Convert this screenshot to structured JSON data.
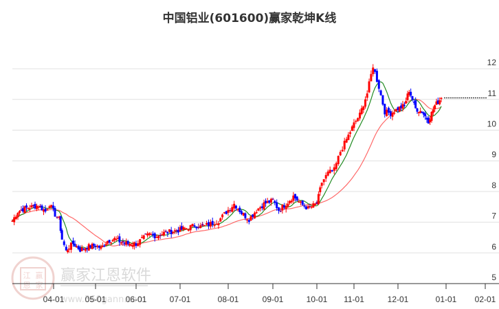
{
  "title": "中国铝业(601600)赢家乾坤K线",
  "watermark": {
    "brand": "赢家江恩软件",
    "url": "www.360gann.com",
    "seal": [
      "江",
      "赢",
      "恩",
      "家"
    ]
  },
  "colors": {
    "up": "#ff0000",
    "down": "#0000ff",
    "neutral": "#800080",
    "ma_short": "#228b22",
    "ma_long": "#ff4d4d",
    "grid": "#e0e0e0",
    "axis": "#333333",
    "last_price_line": "#000000"
  },
  "chart_data": {
    "type": "candlestick",
    "title": "中国铝业(601600)赢家乾坤K线",
    "xlabel": "",
    "ylabel": "",
    "ylim": [
      5,
      12.5
    ],
    "y_ticks": [
      5,
      6,
      7,
      8,
      9,
      10,
      11,
      12
    ],
    "x_ticks": [
      "04-01",
      "05-01",
      "06-01",
      "07-01",
      "08-01",
      "09-01",
      "10-01",
      "11-01",
      "12-01",
      "01-01",
      "02-01"
    ],
    "grid": true,
    "last_price": 11.05,
    "series": [
      {
        "name": "close",
        "points": [
          [
            "03-01",
            7.05
          ],
          [
            "03-05",
            7.35
          ],
          [
            "03-10",
            7.45
          ],
          [
            "03-15",
            7.5
          ],
          [
            "03-20",
            7.55
          ],
          [
            "03-25",
            7.35
          ],
          [
            "03-28",
            7.6
          ],
          [
            "04-02",
            7.25
          ],
          [
            "04-05",
            7.1
          ],
          [
            "04-07",
            6.45
          ],
          [
            "04-10",
            6.05
          ],
          [
            "04-12",
            6.2
          ],
          [
            "04-15",
            6.3
          ],
          [
            "04-20",
            6.1
          ],
          [
            "04-25",
            6.2
          ],
          [
            "05-01",
            6.25
          ],
          [
            "05-05",
            6.15
          ],
          [
            "05-10",
            6.4
          ],
          [
            "05-15",
            6.45
          ],
          [
            "05-20",
            6.35
          ],
          [
            "05-25",
            6.3
          ],
          [
            "06-01",
            6.3
          ],
          [
            "06-05",
            6.45
          ],
          [
            "06-10",
            6.6
          ],
          [
            "06-15",
            6.55
          ],
          [
            "06-20",
            6.65
          ],
          [
            "06-25",
            6.7
          ],
          [
            "07-01",
            6.75
          ],
          [
            "07-05",
            6.8
          ],
          [
            "07-10",
            6.9
          ],
          [
            "07-15",
            6.85
          ],
          [
            "07-20",
            6.95
          ],
          [
            "07-25",
            7.05
          ],
          [
            "08-01",
            7.4
          ],
          [
            "08-05",
            7.6
          ],
          [
            "08-10",
            7.3
          ],
          [
            "08-15",
            7.1
          ],
          [
            "08-20",
            7.4
          ],
          [
            "08-25",
            7.6
          ],
          [
            "09-01",
            7.7
          ],
          [
            "09-05",
            7.4
          ],
          [
            "09-10",
            7.6
          ],
          [
            "09-15",
            7.85
          ],
          [
            "09-20",
            7.6
          ],
          [
            "09-25",
            7.45
          ],
          [
            "10-01",
            7.6
          ],
          [
            "10-05",
            8.3
          ],
          [
            "10-10",
            8.6
          ],
          [
            "10-15",
            8.7
          ],
          [
            "10-20",
            9.3
          ],
          [
            "10-25",
            9.7
          ],
          [
            "11-01",
            10.2
          ],
          [
            "11-05",
            10.5
          ],
          [
            "11-10",
            11.2
          ],
          [
            "11-14",
            12.1
          ],
          [
            "11-18",
            11.4
          ],
          [
            "11-22",
            10.6
          ],
          [
            "11-26",
            10.55
          ],
          [
            "12-01",
            10.7
          ],
          [
            "12-05",
            10.8
          ],
          [
            "12-08",
            11.3
          ],
          [
            "12-12",
            10.7
          ],
          [
            "12-16",
            10.6
          ],
          [
            "12-20",
            10.3
          ],
          [
            "12-24",
            10.8
          ],
          [
            "12-28",
            11.05
          ]
        ]
      },
      {
        "name": "MA-short (green)",
        "description": "short moving average tracking price"
      },
      {
        "name": "MA-long (red)",
        "description": "long moving average, smooth"
      }
    ],
    "annotations": [
      "dashed horizontal last-price line at ~11.05 from 12-28 to right edge"
    ]
  }
}
